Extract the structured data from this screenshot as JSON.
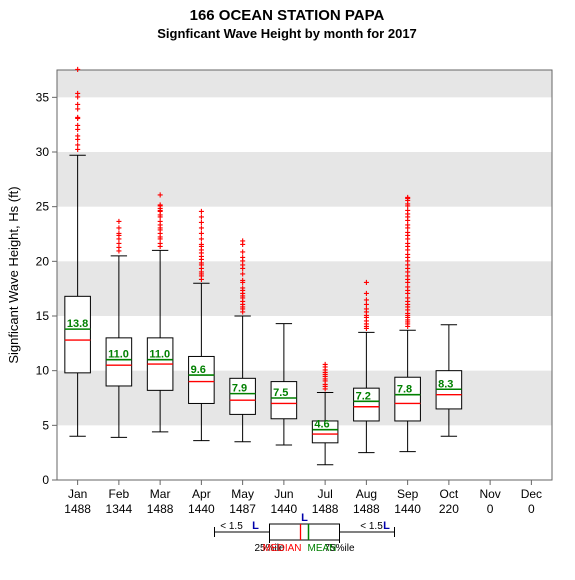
{
  "chart": {
    "type": "boxplot",
    "title_line1": "166   OCEAN STATION PAPA",
    "title_line2": "Signficant Wave Height by month for 2017",
    "ylabel": "Signficant Wave Height, Hs (ft)",
    "ylim": [
      0,
      37.5
    ],
    "ytick_step": 5,
    "yticks": [
      0,
      5,
      10,
      15,
      20,
      25,
      30,
      35
    ],
    "background_color": "#ffffff",
    "band_color": "#e6e6e6",
    "axis_color": "#666666",
    "box_fill": "#ffffff",
    "box_stroke": "#000000",
    "whisker_color": "#000000",
    "median_color": "#ff0000",
    "mean_color": "#008000",
    "outlier_color": "#ff0000",
    "outlier_marker": "+",
    "months": [
      {
        "name": "Jan",
        "count": "1488",
        "q1": 9.8,
        "median": 12.8,
        "q3": 16.8,
        "wlow": 4.0,
        "whigh": 29.7,
        "mean": 13.8,
        "outliers": [
          30.2,
          30.6,
          31.1,
          31.4,
          32.0,
          32.4,
          33.0,
          33.1,
          33.9,
          34.3,
          35.0,
          35.3,
          37.5
        ]
      },
      {
        "name": "Feb",
        "count": "1344",
        "q1": 8.6,
        "median": 10.5,
        "q3": 13.0,
        "wlow": 3.9,
        "whigh": 20.5,
        "mean": 11.0,
        "outliers": [
          20.9,
          21.2,
          21.6,
          22.0,
          22.3,
          22.5,
          23.0,
          23.6
        ]
      },
      {
        "name": "Mar",
        "count": "1488",
        "q1": 8.2,
        "median": 10.6,
        "q3": 13.0,
        "wlow": 4.4,
        "whigh": 21.0,
        "mean": 11.0,
        "outliers": [
          21.3,
          21.6,
          22.0,
          22.2,
          22.5,
          22.8,
          23.0,
          23.3,
          23.6,
          24.0,
          24.2,
          24.5,
          24.6,
          24.8,
          25.0,
          25.1,
          26.0
        ]
      },
      {
        "name": "Apr",
        "count": "1440",
        "q1": 7.0,
        "median": 9.0,
        "q3": 11.3,
        "wlow": 3.6,
        "whigh": 18.0,
        "mean": 9.6,
        "outliers": [
          18.3,
          18.6,
          18.8,
          19.0,
          19.3,
          19.6,
          19.8,
          20.1,
          20.4,
          20.7,
          21.0,
          21.3,
          21.5,
          22.0,
          22.5,
          23.0,
          23.5,
          24.0,
          24.5
        ]
      },
      {
        "name": "May",
        "count": "1487",
        "q1": 6.0,
        "median": 7.3,
        "q3": 9.3,
        "wlow": 3.5,
        "whigh": 15.0,
        "mean": 7.9,
        "outliers": [
          15.3,
          15.6,
          15.8,
          16.0,
          16.3,
          16.6,
          16.8,
          17.0,
          17.3,
          17.5,
          18.0,
          18.2,
          18.8,
          19.3,
          19.6,
          20.0,
          20.3,
          20.8,
          21.5,
          21.8
        ]
      },
      {
        "name": "Jun",
        "count": "1440",
        "q1": 5.6,
        "median": 7.0,
        "q3": 9.0,
        "wlow": 3.2,
        "whigh": 14.3,
        "mean": 7.5,
        "outliers": []
      },
      {
        "name": "Jul",
        "count": "1488",
        "q1": 3.4,
        "median": 4.2,
        "q3": 5.4,
        "wlow": 1.4,
        "whigh": 8.0,
        "mean": 4.6,
        "outliers": [
          8.3,
          8.5,
          8.7,
          9.0,
          9.2,
          9.4,
          9.6,
          9.8,
          10.0,
          10.3,
          10.5
        ]
      },
      {
        "name": "Aug",
        "count": "1488",
        "q1": 5.4,
        "median": 6.7,
        "q3": 8.4,
        "wlow": 2.5,
        "whigh": 13.5,
        "mean": 7.2,
        "outliers": [
          13.8,
          14.0,
          14.2,
          14.5,
          14.8,
          15.0,
          15.3,
          15.6,
          16.0,
          16.4,
          17.0,
          18.0
        ]
      },
      {
        "name": "Sep",
        "count": "1440",
        "q1": 5.4,
        "median": 7.0,
        "q3": 9.4,
        "wlow": 2.6,
        "whigh": 13.7,
        "mean": 7.8,
        "outliers": [
          14.0,
          14.2,
          14.4,
          14.6,
          14.8,
          15.0,
          15.2,
          15.5,
          15.8,
          16.0,
          16.3,
          16.6,
          17.0,
          17.3,
          17.6,
          18.0,
          18.3,
          18.6,
          19.0,
          19.3,
          19.6,
          20.0,
          20.3,
          20.6,
          21.0,
          21.3,
          21.6,
          22.0,
          22.3,
          22.6,
          23.0,
          23.3,
          23.7,
          24.0,
          24.3,
          24.6,
          25.0,
          25.2,
          25.5,
          25.7,
          25.8
        ]
      },
      {
        "name": "Oct",
        "count": "220",
        "q1": 6.5,
        "median": 7.8,
        "q3": 10.0,
        "wlow": 4.0,
        "whigh": 14.2,
        "mean": 8.3,
        "outliers": []
      },
      {
        "name": "Nov",
        "count": "0"
      },
      {
        "name": "Dec",
        "count": "0"
      }
    ],
    "legend": {
      "median_label": "MEDIAN",
      "mean_label": "MEAN",
      "lq_label": "25%ile",
      "uq_label": "75%ile",
      "lwhisk": "< 1.5",
      "rwhisk": "< 1.5",
      "L": "L"
    }
  }
}
